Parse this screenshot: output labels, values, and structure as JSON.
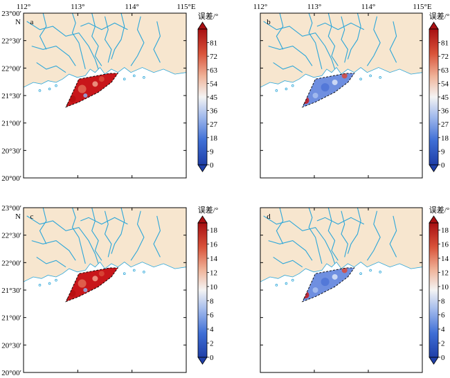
{
  "figure": {
    "panels": [
      {
        "id": "a",
        "label": "a",
        "colorbar": {
          "title": "误差/°",
          "ticks": [
            "0",
            "9",
            "18",
            "27",
            "36",
            "45",
            "54",
            "63",
            "72",
            "81"
          ],
          "range": [
            0,
            90
          ]
        },
        "field_tone": "high",
        "top_axis": true,
        "left_axis": true
      },
      {
        "id": "b",
        "label": "b",
        "colorbar": {
          "title": "误差/°",
          "ticks": [
            "0",
            "9",
            "18",
            "27",
            "36",
            "45",
            "54",
            "63",
            "72",
            "81"
          ],
          "range": [
            0,
            90
          ]
        },
        "field_tone": "low",
        "top_axis": true,
        "left_axis": false
      },
      {
        "id": "c",
        "label": "c",
        "colorbar": {
          "title": "误差/°",
          "ticks": [
            "0",
            "2",
            "4",
            "6",
            "8",
            "10",
            "12",
            "14",
            "16",
            "18"
          ],
          "range": [
            0,
            19
          ]
        },
        "field_tone": "high",
        "top_axis": false,
        "left_axis": true
      },
      {
        "id": "d",
        "label": "d",
        "colorbar": {
          "title": "误差/°",
          "ticks": [
            "0",
            "2",
            "4",
            "6",
            "8",
            "10",
            "12",
            "14",
            "16",
            "18"
          ],
          "range": [
            0,
            19
          ]
        },
        "field_tone": "low",
        "top_axis": false,
        "left_axis": false
      }
    ],
    "lon_ticks": [
      "112°",
      "113°",
      "114°",
      "115°E"
    ],
    "lat_ticks": [
      "23°00′",
      "22°30′",
      "22°00′",
      "21°30′",
      "21°00′",
      "20°30′",
      "20°00′"
    ],
    "north_label": "N",
    "colors": {
      "land": "#f7e6cf",
      "water": "#2ba6d9",
      "sea": "#ffffff",
      "cb_low": "#2b4fbf",
      "cb_mid": "#f4f4f4",
      "cb_high": "#b31212"
    }
  }
}
